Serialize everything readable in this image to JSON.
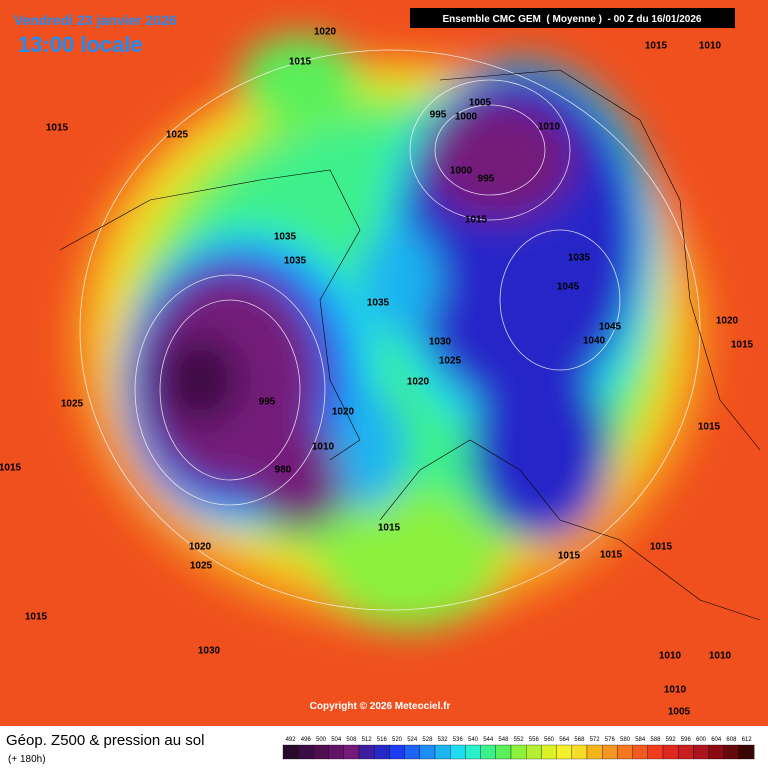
{
  "header": {
    "date": "Vendredi 23 janvier 2026",
    "time": "13:00 locale",
    "model": "Ensemble CMC GEM  ( Moyenne )  - 00 Z du 16/01/2026"
  },
  "isobar_labels": [
    "1020",
    "1015",
    "1015",
    "1025",
    "1005",
    "995",
    "1000",
    "1010",
    "1000",
    "995",
    "1015",
    "1035",
    "1035",
    "1035",
    "1045",
    "1035",
    "1045",
    "1040",
    "1020",
    "1015",
    "1030",
    "1025",
    "1020",
    "995",
    "1020",
    "1010",
    "980",
    "1025",
    "1015",
    "1015",
    "1015",
    "1015",
    "1015",
    "1015",
    "1020",
    "1025",
    "1015",
    "1030",
    "1010",
    "1010",
    "1010",
    "1005",
    "1015",
    "1010"
  ],
  "copyright": "Copyright © 2026 Meteociel.fr",
  "footer": {
    "title": "Géop. Z500 & pression au sol",
    "lead": "(+ 180h)"
  },
  "scale": {
    "values": [
      492,
      496,
      500,
      504,
      508,
      512,
      516,
      520,
      524,
      528,
      532,
      536,
      540,
      544,
      548,
      552,
      556,
      560,
      564,
      568,
      572,
      576,
      580,
      584,
      588,
      592,
      596,
      600,
      604,
      608,
      612
    ],
    "colors": [
      "#2a0a2a",
      "#3c0c44",
      "#501050",
      "#62146a",
      "#741a7a",
      "#3c1ea0",
      "#2828c8",
      "#1e3cf0",
      "#1e64f5",
      "#1e8cf5",
      "#1eb4f0",
      "#1edcf0",
      "#28f0c8",
      "#3cf08c",
      "#5af05a",
      "#8cf03c",
      "#b4f032",
      "#dcf028",
      "#f5f028",
      "#f5dc28",
      "#f5b41e",
      "#f5961e",
      "#f5781e",
      "#f05a1e",
      "#f03c1e",
      "#dc281e",
      "#c81e1e",
      "#aa141e",
      "#8c0a14",
      "#640a0a",
      "#3c0505"
    ]
  }
}
